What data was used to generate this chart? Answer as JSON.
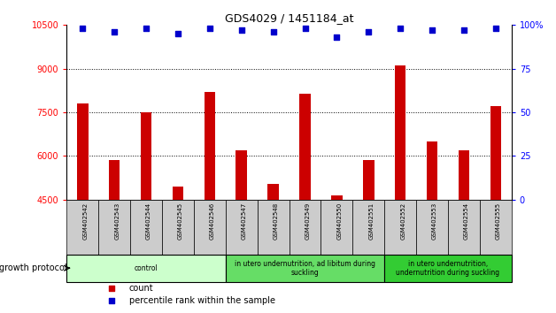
{
  "title": "GDS4029 / 1451184_at",
  "samples": [
    "GSM402542",
    "GSM402543",
    "GSM402544",
    "GSM402545",
    "GSM402546",
    "GSM402547",
    "GSM402548",
    "GSM402549",
    "GSM402550",
    "GSM402551",
    "GSM402552",
    "GSM402553",
    "GSM402554",
    "GSM402555"
  ],
  "counts": [
    7800,
    5850,
    7500,
    4950,
    8200,
    6200,
    5050,
    8150,
    4650,
    5850,
    9100,
    6500,
    6200,
    7700
  ],
  "percentiles": [
    98,
    96,
    98,
    95,
    98,
    97,
    96,
    98,
    93,
    96,
    98,
    97,
    97,
    98
  ],
  "bar_color": "#cc0000",
  "dot_color": "#0000cc",
  "ylim_left": [
    4500,
    10500
  ],
  "ylim_right": [
    0,
    100
  ],
  "yticks_left": [
    4500,
    6000,
    7500,
    9000,
    10500
  ],
  "yticks_right": [
    0,
    25,
    50,
    75,
    100
  ],
  "ytick_labels_right": [
    "0",
    "25",
    "50",
    "75",
    "100%"
  ],
  "groups": [
    {
      "label": "control",
      "start": 0,
      "end": 5,
      "color": "#ccffcc"
    },
    {
      "label": "in utero undernutrition, ad libitum during\nsuckling",
      "start": 5,
      "end": 10,
      "color": "#66dd66"
    },
    {
      "label": "in utero undernutrition,\nundernutrition during suckling",
      "start": 10,
      "end": 14,
      "color": "#33cc33"
    }
  ],
  "xlabel_growth": "growth protocol",
  "legend_count": "count",
  "legend_pct": "percentile rank within the sample",
  "sample_bg_color": "#cccccc",
  "bar_width": 0.35
}
